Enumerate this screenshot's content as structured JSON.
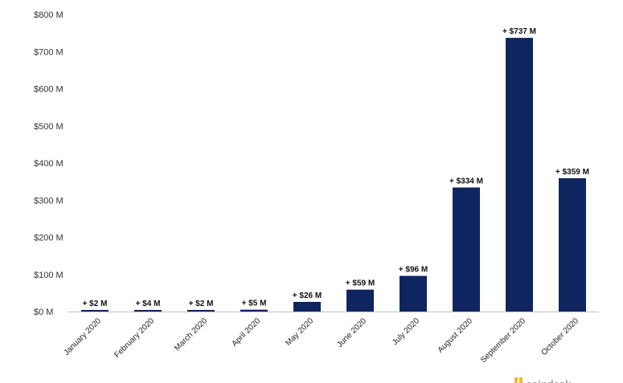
{
  "chart_data": {
    "type": "bar",
    "categories": [
      "January 2020",
      "February 2020",
      "March 2020",
      "April 2020",
      "May 2020",
      "June 2020",
      "July 2020",
      "August 2020",
      "September 2020",
      "October 2020"
    ],
    "values": [
      2,
      4,
      2,
      5,
      26,
      59,
      96,
      334,
      737,
      359
    ],
    "data_labels": [
      "+ $2 M",
      "+ $4 M",
      "+ $2 M",
      "+ $5 M",
      "+ $26 M",
      "+ $59 M",
      "+ $96 M",
      "+ $334 M",
      "+ $737 M",
      "+ $359 M"
    ],
    "ytick_values": [
      0,
      100,
      200,
      300,
      400,
      500,
      600,
      700,
      800
    ],
    "ytick_labels": [
      "$0 M",
      "$100 M",
      "$200 M",
      "$300 M",
      "$400 M",
      "$500 M",
      "$600 M",
      "$700 M",
      "$800 M"
    ],
    "ylim": [
      0,
      800
    ],
    "grid": false,
    "legend": "none",
    "bar_color": "#0e2560"
  },
  "brand": {
    "logo_text": "coindesk",
    "logo_color": "#f5b82e"
  }
}
